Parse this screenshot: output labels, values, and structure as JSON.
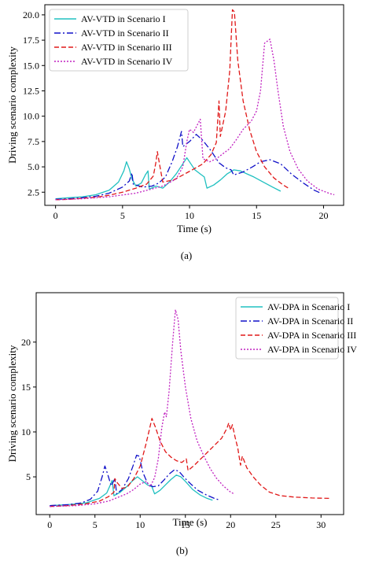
{
  "chart_data": [
    {
      "type": "line",
      "caption": "(a)",
      "xlabel": "Time (s)",
      "ylabel": "Driving scenario complexity",
      "xlim": [
        -0.8,
        21.5
      ],
      "ylim": [
        1.2,
        21.0
      ],
      "xticks": [
        0,
        5,
        10,
        15,
        20
      ],
      "yticks": [
        2.5,
        5.0,
        7.5,
        10.0,
        12.5,
        15.0,
        17.5,
        20.0
      ],
      "ytick_decimals": 1,
      "legend_position": "top-left",
      "series": [
        {
          "name": "AV-VTD in Scenario I",
          "color": "#20c0c0",
          "dash": "solid",
          "points": [
            [
              0,
              1.85
            ],
            [
              1,
              1.95
            ],
            [
              2,
              2.05
            ],
            [
              3,
              2.25
            ],
            [
              4,
              2.7
            ],
            [
              4.7,
              3.5
            ],
            [
              5.1,
              4.6
            ],
            [
              5.3,
              5.5
            ],
            [
              5.5,
              4.8
            ],
            [
              5.7,
              3.8
            ],
            [
              6.0,
              3.1
            ],
            [
              6.4,
              3.4
            ],
            [
              6.7,
              4.2
            ],
            [
              6.9,
              4.6
            ],
            [
              7.0,
              2.8
            ],
            [
              7.5,
              3.1
            ],
            [
              8.0,
              2.9
            ],
            [
              8.5,
              3.5
            ],
            [
              9.0,
              4.3
            ],
            [
              9.5,
              5.3
            ],
            [
              9.8,
              5.9
            ],
            [
              10.1,
              5.3
            ],
            [
              10.4,
              4.7
            ],
            [
              10.8,
              4.3
            ],
            [
              11.1,
              4.0
            ],
            [
              11.3,
              2.9
            ],
            [
              11.8,
              3.2
            ],
            [
              12.3,
              3.7
            ],
            [
              12.8,
              4.3
            ],
            [
              13.3,
              4.7
            ],
            [
              13.8,
              4.6
            ],
            [
              14.3,
              4.3
            ],
            [
              14.8,
              4.0
            ],
            [
              15.5,
              3.5
            ],
            [
              16.2,
              3.0
            ],
            [
              16.8,
              2.6
            ]
          ]
        },
        {
          "name": "AV-VTD in Scenario II",
          "color": "#1010c8",
          "dash": "8,3,2,3",
          "points": [
            [
              0,
              1.8
            ],
            [
              1,
              1.85
            ],
            [
              2,
              1.95
            ],
            [
              3,
              2.1
            ],
            [
              4,
              2.4
            ],
            [
              5,
              3.0
            ],
            [
              5.5,
              3.6
            ],
            [
              5.7,
              4.4
            ],
            [
              5.8,
              3.3
            ],
            [
              6.5,
              3.0
            ],
            [
              7.2,
              3.1
            ],
            [
              7.7,
              3.4
            ],
            [
              8.2,
              4.0
            ],
            [
              8.7,
              5.5
            ],
            [
              9.1,
              7.0
            ],
            [
              9.4,
              8.5
            ],
            [
              9.5,
              7.0
            ],
            [
              10.0,
              7.5
            ],
            [
              10.5,
              8.2
            ],
            [
              11.0,
              7.6
            ],
            [
              11.6,
              6.6
            ],
            [
              12.2,
              5.4
            ],
            [
              12.7,
              4.9
            ],
            [
              13.1,
              4.7
            ],
            [
              13.3,
              4.2
            ],
            [
              14.0,
              4.5
            ],
            [
              14.7,
              5.0
            ],
            [
              15.3,
              5.5
            ],
            [
              16.0,
              5.7
            ],
            [
              16.8,
              5.3
            ],
            [
              17.6,
              4.3
            ],
            [
              18.5,
              3.4
            ],
            [
              19.3,
              2.7
            ],
            [
              19.8,
              2.4
            ]
          ]
        },
        {
          "name": "AV-VTD in Scenario III",
          "color": "#e01818",
          "dash": "6,3",
          "points": [
            [
              0,
              1.75
            ],
            [
              1,
              1.8
            ],
            [
              2,
              1.9
            ],
            [
              3,
              2.0
            ],
            [
              4,
              2.2
            ],
            [
              5,
              2.5
            ],
            [
              6,
              2.9
            ],
            [
              6.8,
              3.3
            ],
            [
              7.3,
              4.1
            ],
            [
              7.5,
              5.5
            ],
            [
              7.6,
              6.5
            ],
            [
              7.8,
              5.0
            ],
            [
              8.0,
              3.5
            ],
            [
              8.8,
              3.7
            ],
            [
              9.5,
              4.2
            ],
            [
              10.2,
              4.7
            ],
            [
              11.0,
              5.3
            ],
            [
              11.6,
              6.2
            ],
            [
              12.0,
              7.4
            ],
            [
              12.2,
              11.5
            ],
            [
              12.3,
              8.0
            ],
            [
              12.7,
              10.5
            ],
            [
              13.0,
              14.5
            ],
            [
              13.2,
              20.5
            ],
            [
              13.35,
              20.3
            ],
            [
              13.6,
              15.5
            ],
            [
              14.0,
              11.5
            ],
            [
              14.5,
              8.6
            ],
            [
              15.0,
              6.5
            ],
            [
              15.6,
              5.0
            ],
            [
              16.3,
              3.9
            ],
            [
              17.0,
              3.2
            ],
            [
              17.5,
              2.8
            ]
          ]
        },
        {
          "name": "AV-VTD in Scenario IV",
          "color": "#c020c0",
          "dash": "2,2",
          "points": [
            [
              0,
              1.75
            ],
            [
              2,
              1.85
            ],
            [
              4,
              2.05
            ],
            [
              6,
              2.4
            ],
            [
              8,
              3.1
            ],
            [
              9,
              3.8
            ],
            [
              9.5,
              5.0
            ],
            [
              9.8,
              7.5
            ],
            [
              10.0,
              8.7
            ],
            [
              10.3,
              8.4
            ],
            [
              10.6,
              9.2
            ],
            [
              10.8,
              9.7
            ],
            [
              11.0,
              5.8
            ],
            [
              11.5,
              5.5
            ],
            [
              12.0,
              5.8
            ],
            [
              12.5,
              6.3
            ],
            [
              13.0,
              6.8
            ],
            [
              13.5,
              7.7
            ],
            [
              14.0,
              8.7
            ],
            [
              14.6,
              9.5
            ],
            [
              15.0,
              10.5
            ],
            [
              15.3,
              12.5
            ],
            [
              15.6,
              17.2
            ],
            [
              16.0,
              17.6
            ],
            [
              16.3,
              15.5
            ],
            [
              16.6,
              12.5
            ],
            [
              17.0,
              9.0
            ],
            [
              17.5,
              6.5
            ],
            [
              18.1,
              4.8
            ],
            [
              18.8,
              3.6
            ],
            [
              19.6,
              2.8
            ],
            [
              20.5,
              2.35
            ],
            [
              20.8,
              2.25
            ]
          ]
        }
      ]
    },
    {
      "type": "line",
      "caption": "(b)",
      "xlabel": "Time (s)",
      "ylabel": "Driving scenario complexity",
      "xlim": [
        -1.5,
        32.5
      ],
      "ylim": [
        0.8,
        25.5
      ],
      "xticks": [
        0,
        5,
        10,
        15,
        20,
        25,
        30
      ],
      "yticks": [
        5,
        10,
        15,
        20
      ],
      "ytick_decimals": 0,
      "legend_position": "top-right",
      "series": [
        {
          "name": "AV-DPA in Scenario I",
          "color": "#20c0c0",
          "dash": "solid",
          "points": [
            [
              0,
              1.8
            ],
            [
              2,
              1.9
            ],
            [
              4,
              2.1
            ],
            [
              5.5,
              2.6
            ],
            [
              6.3,
              3.2
            ],
            [
              6.7,
              4.1
            ],
            [
              6.9,
              4.6
            ],
            [
              7.1,
              2.9
            ],
            [
              7.8,
              3.3
            ],
            [
              8.5,
              3.9
            ],
            [
              9.2,
              4.6
            ],
            [
              9.7,
              5.0
            ],
            [
              10.2,
              4.6
            ],
            [
              10.8,
              4.1
            ],
            [
              11.3,
              3.9
            ],
            [
              11.6,
              3.1
            ],
            [
              12.2,
              3.5
            ],
            [
              12.8,
              4.1
            ],
            [
              13.4,
              4.7
            ],
            [
              14.0,
              5.2
            ],
            [
              14.5,
              5.0
            ],
            [
              15.0,
              4.5
            ],
            [
              15.8,
              3.6
            ],
            [
              16.6,
              3.0
            ],
            [
              17.4,
              2.6
            ],
            [
              18.0,
              2.4
            ]
          ]
        },
        {
          "name": "AV-DPA in Scenario II",
          "color": "#1010c8",
          "dash": "8,3,2,3",
          "points": [
            [
              0,
              1.8
            ],
            [
              2,
              1.9
            ],
            [
              3.5,
              2.1
            ],
            [
              4.5,
              2.5
            ],
            [
              5.3,
              3.4
            ],
            [
              5.8,
              5.0
            ],
            [
              6.1,
              6.2
            ],
            [
              6.4,
              5.3
            ],
            [
              6.8,
              4.0
            ],
            [
              7.2,
              4.8
            ],
            [
              7.4,
              3.1
            ],
            [
              8.0,
              3.6
            ],
            [
              8.7,
              4.8
            ],
            [
              9.2,
              6.2
            ],
            [
              9.6,
              7.4
            ],
            [
              9.9,
              7.3
            ],
            [
              10.3,
              5.5
            ],
            [
              10.8,
              4.3
            ],
            [
              11.4,
              3.9
            ],
            [
              12.0,
              4.0
            ],
            [
              12.6,
              4.6
            ],
            [
              13.2,
              5.3
            ],
            [
              13.8,
              5.8
            ],
            [
              14.3,
              5.6
            ],
            [
              14.9,
              4.9
            ],
            [
              15.6,
              4.2
            ],
            [
              16.4,
              3.5
            ],
            [
              17.3,
              3.0
            ],
            [
              18.2,
              2.6
            ],
            [
              18.7,
              2.45
            ]
          ]
        },
        {
          "name": "AV-DPA in Scenario III",
          "color": "#e01818",
          "dash": "6,3",
          "points": [
            [
              0,
              1.7
            ],
            [
              2,
              1.8
            ],
            [
              4,
              2.0
            ],
            [
              5.5,
              2.3
            ],
            [
              6.5,
              2.8
            ],
            [
              7.1,
              3.3
            ],
            [
              7.2,
              4.8
            ],
            [
              7.5,
              4.3
            ],
            [
              8.0,
              3.7
            ],
            [
              8.6,
              3.9
            ],
            [
              9.3,
              4.8
            ],
            [
              10.0,
              6.2
            ],
            [
              10.6,
              8.5
            ],
            [
              11.0,
              10.2
            ],
            [
              11.3,
              11.5
            ],
            [
              11.7,
              10.5
            ],
            [
              12.2,
              9.0
            ],
            [
              12.8,
              7.8
            ],
            [
              13.4,
              7.2
            ],
            [
              14.0,
              6.8
            ],
            [
              14.6,
              6.6
            ],
            [
              15.1,
              7.0
            ],
            [
              15.3,
              5.7
            ],
            [
              16.0,
              6.3
            ],
            [
              17.0,
              7.3
            ],
            [
              18.0,
              8.3
            ],
            [
              19.0,
              9.3
            ],
            [
              19.6,
              10.4
            ],
            [
              19.8,
              11.0
            ],
            [
              20.0,
              10.2
            ],
            [
              20.2,
              10.8
            ],
            [
              20.5,
              9.4
            ],
            [
              20.8,
              8.2
            ],
            [
              21.1,
              6.3
            ],
            [
              21.3,
              7.3
            ],
            [
              21.8,
              6.0
            ],
            [
              22.5,
              5.0
            ],
            [
              23.3,
              4.1
            ],
            [
              24.3,
              3.3
            ],
            [
              25.5,
              2.9
            ],
            [
              27.0,
              2.75
            ],
            [
              29.0,
              2.65
            ],
            [
              31.0,
              2.6
            ]
          ]
        },
        {
          "name": "AV-DPA in Scenario IV",
          "color": "#c020c0",
          "dash": "2,2",
          "points": [
            [
              0,
              1.7
            ],
            [
              3,
              1.8
            ],
            [
              5,
              2.0
            ],
            [
              6.5,
              2.3
            ],
            [
              7.5,
              2.7
            ],
            [
              8.5,
              3.1
            ],
            [
              9.3,
              3.6
            ],
            [
              10.0,
              4.2
            ],
            [
              10.7,
              4.5
            ],
            [
              11.1,
              3.9
            ],
            [
              11.6,
              4.9
            ],
            [
              12.0,
              7.0
            ],
            [
              12.4,
              10.5
            ],
            [
              12.7,
              12.2
            ],
            [
              12.9,
              11.7
            ],
            [
              13.2,
              14.5
            ],
            [
              13.6,
              20.0
            ],
            [
              13.9,
              23.6
            ],
            [
              14.2,
              22.5
            ],
            [
              14.5,
              19.0
            ],
            [
              15.0,
              15.0
            ],
            [
              15.6,
              11.5
            ],
            [
              16.3,
              9.0
            ],
            [
              17.0,
              7.4
            ],
            [
              17.7,
              6.0
            ],
            [
              18.4,
              4.9
            ],
            [
              19.2,
              4.0
            ],
            [
              20.0,
              3.3
            ],
            [
              20.4,
              3.1
            ]
          ]
        }
      ]
    }
  ]
}
